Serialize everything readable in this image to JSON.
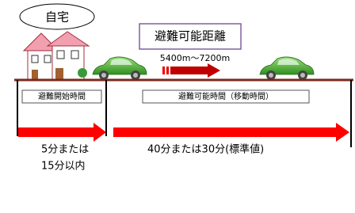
{
  "home": {
    "label": "自宅"
  },
  "distance": {
    "title": "避難可能距離",
    "range": "5400m～7200m"
  },
  "phases": [
    {
      "label": "避難開始時間",
      "time_line1": "5分または",
      "time_line2": "15分以内"
    },
    {
      "label": "避難可能時間（移動時間）",
      "time_line1": "40分または30分(標準値)"
    }
  ]
}
